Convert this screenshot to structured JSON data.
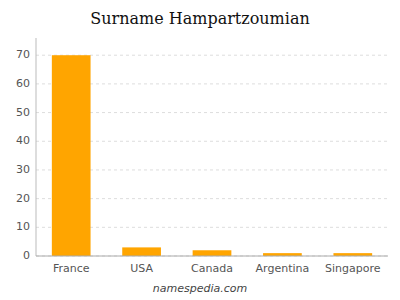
{
  "chart_data": {
    "type": "bar",
    "title": "Surname Hampartzoumian",
    "categories": [
      "France",
      "USA",
      "Canada",
      "Argentina",
      "Singapore"
    ],
    "values": [
      70,
      3,
      2,
      1,
      1
    ],
    "color": "#FFA500",
    "ylim": [
      0,
      76
    ],
    "yticks": [
      0,
      10,
      20,
      30,
      40,
      50,
      60,
      70
    ],
    "grid": true,
    "annotations": [
      "namespedia.com"
    ]
  }
}
